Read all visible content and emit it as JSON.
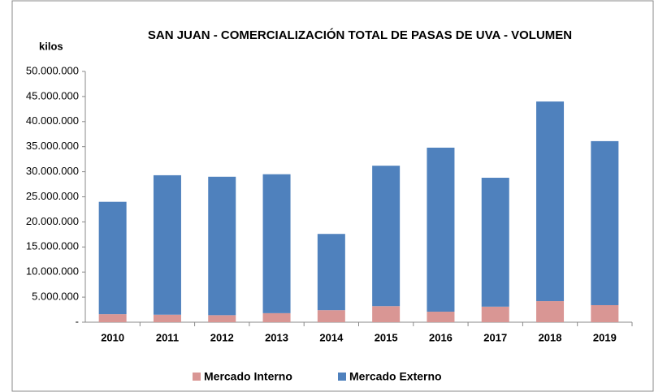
{
  "chart_data": {
    "type": "stacked_bar",
    "title": "SAN JUAN -  COMERCIALIZACIÓN TOTAL DE PASAS DE UVA - VOLUMEN",
    "y_label": "kilos",
    "categories": [
      "2010",
      "2011",
      "2012",
      "2013",
      "2014",
      "2015",
      "2016",
      "2017",
      "2018",
      "2019"
    ],
    "series": [
      {
        "name": "Mercado Interno",
        "color": "#d99694",
        "values": [
          1600000,
          1500000,
          1400000,
          1800000,
          2400000,
          3200000,
          2100000,
          3100000,
          4200000,
          3400000
        ]
      },
      {
        "name": "Mercado Externo",
        "color": "#4f81bd",
        "values": [
          22400000,
          27800000,
          27600000,
          27700000,
          15200000,
          28000000,
          32700000,
          25700000,
          39800000,
          32700000
        ]
      }
    ],
    "ylim": [
      0,
      50000000
    ],
    "yticks": [
      {
        "value": 0,
        "label": "-"
      },
      {
        "value": 5000000,
        "label": "5.000.000"
      },
      {
        "value": 10000000,
        "label": "10.000.000"
      },
      {
        "value": 15000000,
        "label": "15.000.000"
      },
      {
        "value": 20000000,
        "label": "20.000.000"
      },
      {
        "value": 25000000,
        "label": "25.000.000"
      },
      {
        "value": 30000000,
        "label": "30.000.000"
      },
      {
        "value": 35000000,
        "label": "35.000.000"
      },
      {
        "value": 40000000,
        "label": "40.000.000"
      },
      {
        "value": 45000000,
        "label": "45.000.000"
      },
      {
        "value": 50000000,
        "label": "50.000.000"
      }
    ],
    "legend": "bottom",
    "grid": false
  }
}
